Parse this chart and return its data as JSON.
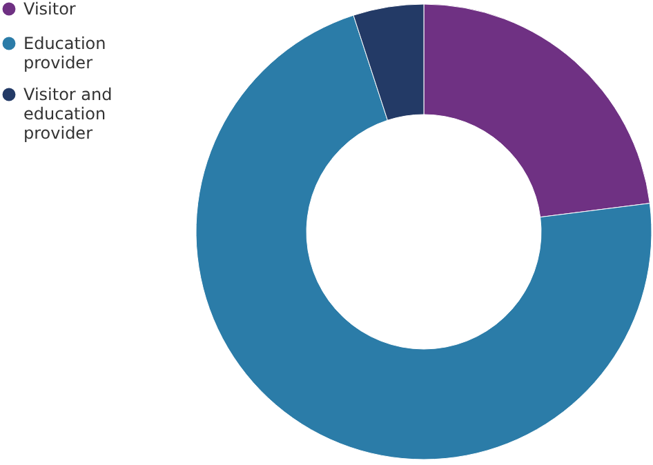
{
  "chart_data": {
    "type": "donut",
    "categories": [
      "Visitor",
      "Education provider",
      "Visitor and education provider"
    ],
    "values": [
      23,
      72,
      5
    ],
    "colors": [
      "#6f3183",
      "#2b7ca8",
      "#233a66"
    ],
    "legend": "top left"
  }
}
